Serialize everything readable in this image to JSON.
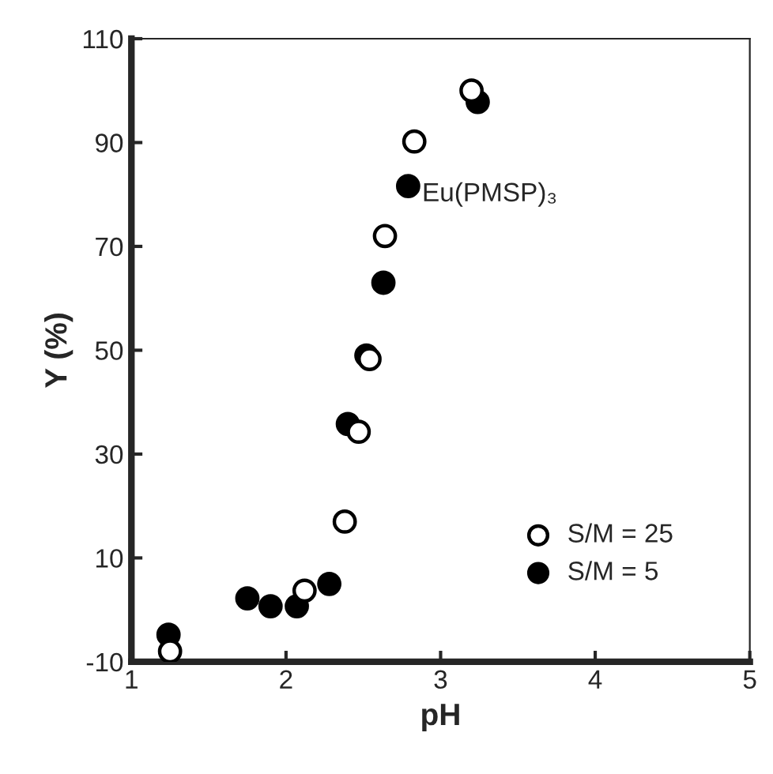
{
  "chart_data": {
    "type": "scatter",
    "xlabel": "pH",
    "ylabel": "Y (%)",
    "xlim": [
      1,
      5
    ],
    "ylim": [
      -10,
      110
    ],
    "xticks": [
      1,
      2,
      3,
      4,
      5
    ],
    "yticks": [
      -10,
      10,
      30,
      50,
      70,
      90,
      110
    ],
    "grid": false,
    "legend": "bottom right",
    "marker": "circle",
    "annotations": [
      {
        "text": "Eu(PMSP)₃",
        "x": 2.88,
        "y": 80
      }
    ],
    "series": [
      {
        "name": "S/M = 25",
        "color": "#ffffff",
        "x": [
          1.25,
          2.12,
          2.38,
          2.47,
          2.54,
          2.64,
          2.83,
          3.2
        ],
        "values": [
          -8,
          3.7,
          17,
          34.3,
          48.3,
          72,
          90.2,
          100
        ]
      },
      {
        "name": "S/M = 5",
        "color": "#000000",
        "x": [
          1.24,
          1.75,
          1.9,
          2.07,
          2.28,
          2.4,
          2.52,
          2.63,
          2.79,
          3.24
        ],
        "values": [
          -4.8,
          2.2,
          0.7,
          0.7,
          5,
          35.8,
          49,
          63,
          81.6,
          97.8
        ]
      }
    ]
  }
}
